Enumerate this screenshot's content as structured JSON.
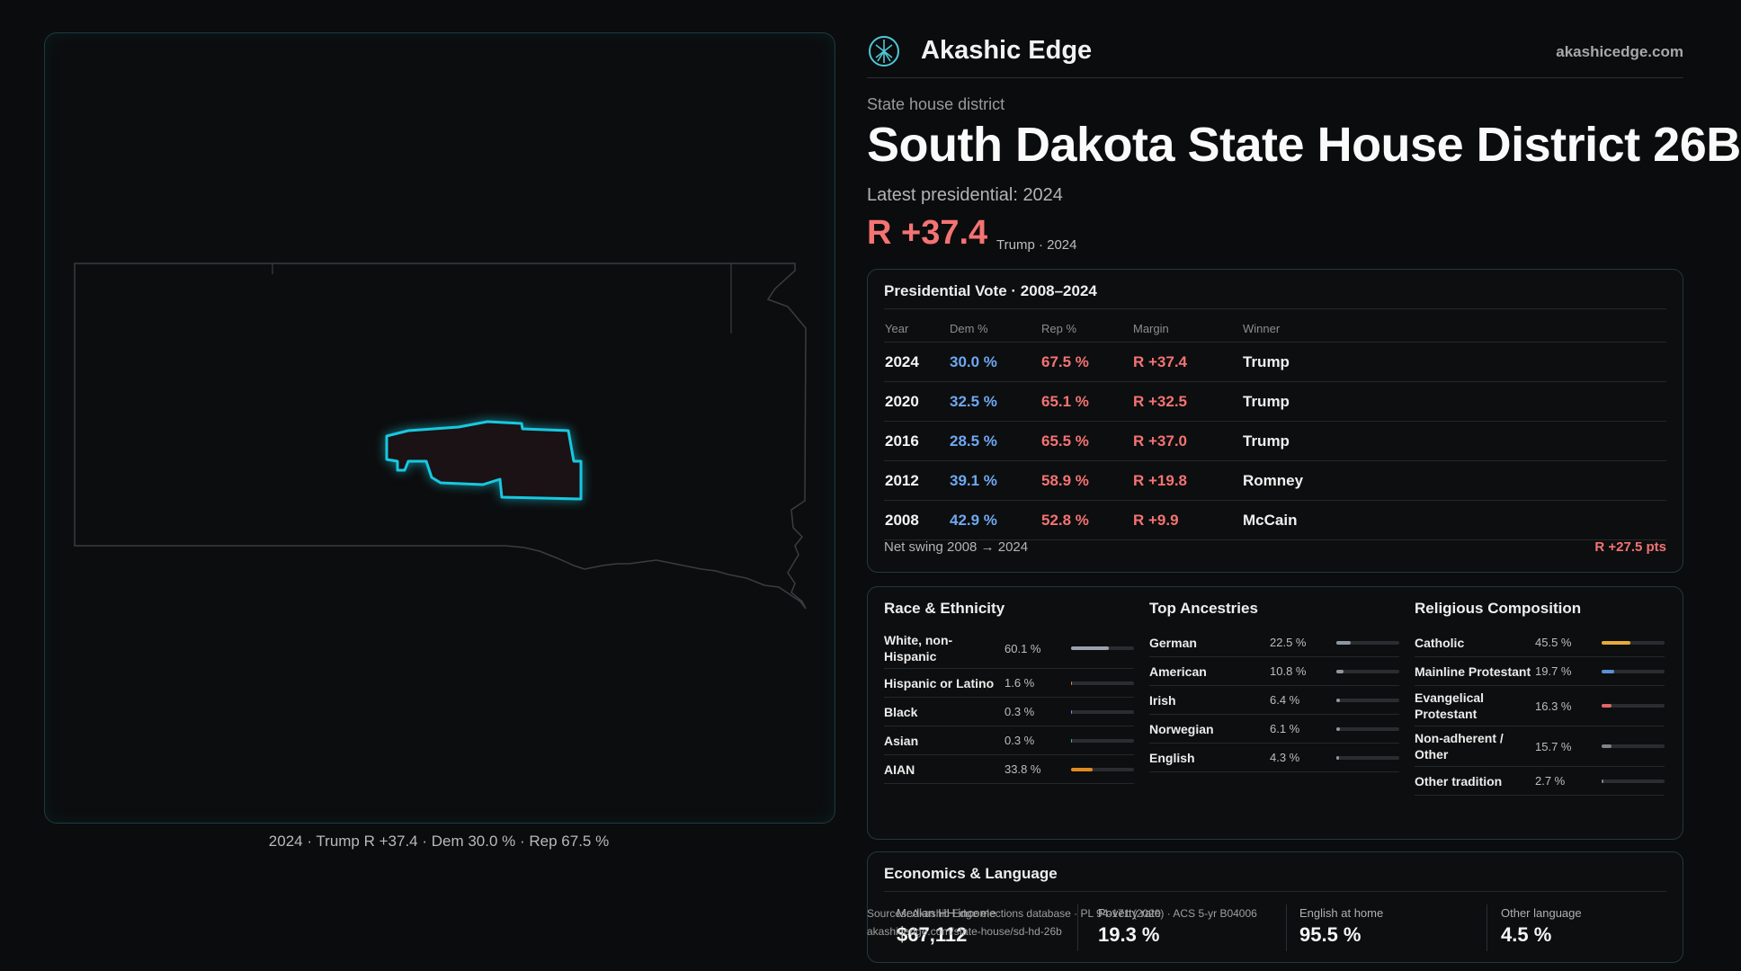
{
  "brand": {
    "name": "Akashic Edge",
    "domain": "akashicedge.com",
    "icon": "akashic-edge-logo-icon"
  },
  "district": {
    "kicker": "State house district",
    "title": "South Dakota State House District 26B",
    "latest_label": "Latest presidential: 2024",
    "margin": "R +37.4",
    "margin_sub": "Trump · 2024"
  },
  "map": {
    "caption": "2024 · Trump R +37.4 · Dem 30.0 % · Rep 67.5 %"
  },
  "presidential": {
    "title": "Presidential Vote · 2008–2024",
    "headers": {
      "year": "Year",
      "dem": "Dem %",
      "rep": "Rep %",
      "margin": "Margin",
      "winner": "Winner"
    },
    "rows": [
      {
        "year": "2024",
        "dem": "30.0 %",
        "rep": "67.5 %",
        "margin": "R +37.4",
        "winner": "Trump"
      },
      {
        "year": "2020",
        "dem": "32.5 %",
        "rep": "65.1 %",
        "margin": "R +32.5",
        "winner": "Trump"
      },
      {
        "year": "2016",
        "dem": "28.5 %",
        "rep": "65.5 %",
        "margin": "R +37.0",
        "winner": "Trump"
      },
      {
        "year": "2012",
        "dem": "39.1 %",
        "rep": "58.9 %",
        "margin": "R +19.8",
        "winner": "Romney"
      },
      {
        "year": "2008",
        "dem": "42.9 %",
        "rep": "52.8 %",
        "margin": "R +9.9",
        "winner": "McCain"
      }
    ],
    "swing_label": "Net swing 2008 → 2024",
    "swing_value": "R +27.5 pts"
  },
  "race": {
    "title": "Race & Ethnicity",
    "rows": [
      {
        "label": "White, non-Hispanic",
        "pct": "60.1 %",
        "value": 60.1,
        "color": "#9aa3ad"
      },
      {
        "label": "Hispanic or Latino",
        "pct": "1.6 %",
        "value": 1.6,
        "color": "#e07b39"
      },
      {
        "label": "Black",
        "pct": "0.3 %",
        "value": 0.3,
        "color": "#8a7fd6"
      },
      {
        "label": "Asian",
        "pct": "0.3 %",
        "value": 0.3,
        "color": "#3bb28f"
      },
      {
        "label": "AIAN",
        "pct": "33.8 %",
        "value": 33.8,
        "color": "#e08a1f"
      }
    ]
  },
  "ancestry": {
    "title": "Top Ancestries",
    "rows": [
      {
        "label": "German",
        "pct": "22.5 %",
        "value": 22.5,
        "color": "#8e97a1"
      },
      {
        "label": "American",
        "pct": "10.8 %",
        "value": 10.8,
        "color": "#8e97a1"
      },
      {
        "label": "Irish",
        "pct": "6.4 %",
        "value": 6.4,
        "color": "#8e97a1"
      },
      {
        "label": "Norwegian",
        "pct": "6.1 %",
        "value": 6.1,
        "color": "#8e97a1"
      },
      {
        "label": "English",
        "pct": "4.3 %",
        "value": 4.3,
        "color": "#8e97a1"
      }
    ]
  },
  "religion": {
    "title": "Religious Composition",
    "rows": [
      {
        "label": "Catholic",
        "pct": "45.5 %",
        "value": 45.5,
        "color": "#e8a93a"
      },
      {
        "label": "Mainline Protestant",
        "pct": "19.7 %",
        "value": 19.7,
        "color": "#5b8fd6"
      },
      {
        "label": "Evangelical Protestant",
        "pct": "16.3 %",
        "value": 16.3,
        "color": "#e06767"
      },
      {
        "label": "Non-adherent / Other",
        "pct": "15.7 %",
        "value": 15.7,
        "color": "#7d848c"
      },
      {
        "label": "Other tradition",
        "pct": "2.7 %",
        "value": 2.7,
        "color": "#7d848c"
      }
    ]
  },
  "economics": {
    "title": "Economics & Language",
    "stats": [
      {
        "label": "Median HH income",
        "value": "$67,112"
      },
      {
        "label": "Poverty rate",
        "value": "19.3 %"
      },
      {
        "label": "English at home",
        "value": "95.5 %"
      },
      {
        "label": "Other language",
        "value": "4.5 %"
      }
    ]
  },
  "source": {
    "line1": "Sources: Akashic Edge elections database · PL 94-171 (2020) · ACS 5-yr B04006",
    "line2": "akashicedge.com/state-house/sd-hd-26b"
  }
}
